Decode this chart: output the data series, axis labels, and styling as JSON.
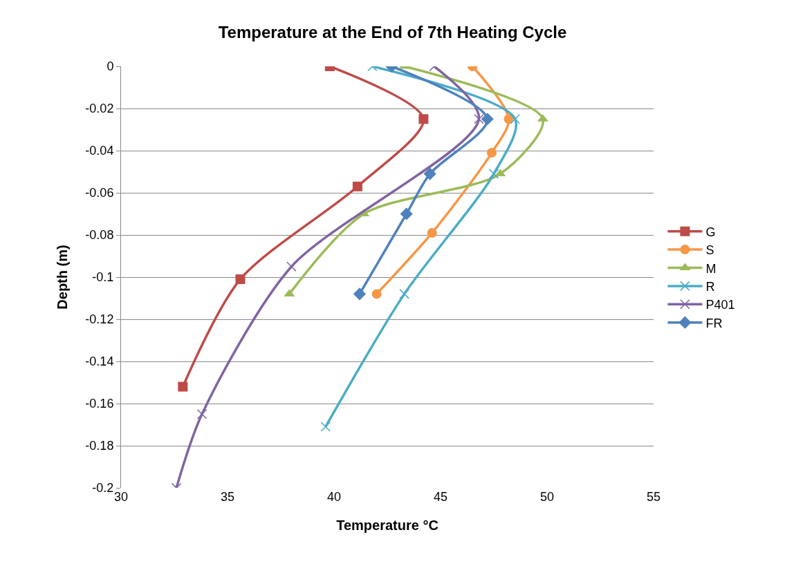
{
  "chart_data": {
    "type": "line",
    "title": "Temperature at the End of 7th Heating Cycle",
    "xlabel": "Temperature °C",
    "ylabel": "Depth (m)",
    "xlim": [
      30,
      55
    ],
    "xticks": [
      30,
      35,
      40,
      45,
      50,
      55
    ],
    "ylim": [
      -0.2,
      0
    ],
    "yticks": [
      0,
      -0.02,
      -0.04,
      -0.06,
      -0.08,
      -0.1,
      -0.12,
      -0.14,
      -0.16,
      -0.18,
      -0.2
    ],
    "grid": "y",
    "legend": "right",
    "series": [
      {
        "name": "G",
        "color": "#be4b48",
        "marker": "square",
        "x": [
          39.8,
          44.2,
          41.1,
          35.6,
          32.9
        ],
        "values": [
          0,
          -0.025,
          -0.057,
          -0.101,
          -0.152
        ]
      },
      {
        "name": "S",
        "color": "#f79646",
        "marker": "circle",
        "x": [
          46.5,
          48.2,
          47.4,
          44.6,
          42.0
        ],
        "values": [
          0,
          -0.025,
          -0.041,
          -0.079,
          -0.108
        ]
      },
      {
        "name": "M",
        "color": "#9bbb59",
        "marker": "triangle",
        "x": [
          43.3,
          49.8,
          47.8,
          41.4,
          37.9
        ],
        "values": [
          0,
          -0.025,
          -0.051,
          -0.07,
          -0.108
        ]
      },
      {
        "name": "R",
        "color": "#4bacc6",
        "marker": "cross",
        "x": [
          41.8,
          48.5,
          47.5,
          43.3,
          39.6
        ],
        "values": [
          0,
          -0.025,
          -0.051,
          -0.108,
          -0.171
        ]
      },
      {
        "name": "P401",
        "color": "#8064a2",
        "marker": "cross",
        "x": [
          44.7,
          46.8,
          38.0,
          33.8,
          32.6
        ],
        "values": [
          0,
          -0.025,
          -0.095,
          -0.165,
          -0.2
        ]
      },
      {
        "name": "FR",
        "color": "#4f81bd",
        "marker": "diamond",
        "x": [
          42.7,
          47.2,
          44.5,
          43.4,
          41.2
        ],
        "values": [
          0,
          -0.025,
          -0.051,
          -0.07,
          -0.108
        ]
      }
    ]
  }
}
